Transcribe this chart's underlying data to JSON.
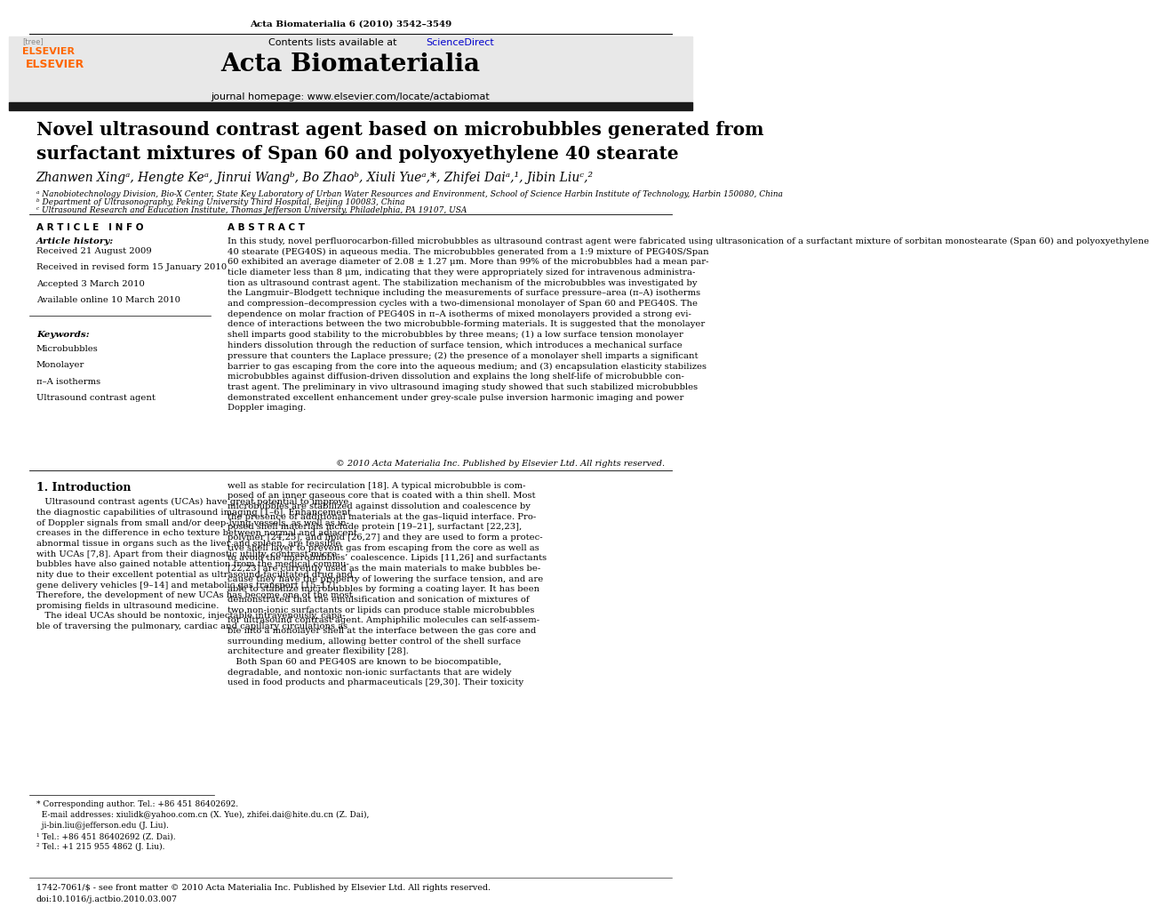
{
  "page_width": 9.92,
  "page_height": 13.23,
  "background_color": "#ffffff",
  "top_margin_text": "Acta Biomaterialia 6 (2010) 3542–3549",
  "journal_name": "Acta Biomaterialia",
  "journal_homepage": "journal homepage: www.elsevier.com/locate/actabiomat",
  "contents_text": "Contents lists available at ScienceDirect",
  "article_title": "Novel ultrasound contrast agent based on microbubbles generated from\nsurfactant mixtures of Span 60 and polyoxyethylene 40 stearate",
  "authors": "Zhanwen Xingᵃ, Hengte Keᵃ, Jinrui Wangᵇ, Bo Zhaoᵇ, Xiuli Yueᵃ,*, Zhifei Daiᵃ,¹, Jibin Liuᶜ,²",
  "affil_a": "ᵃ Nanobiotechnology Division, Bio-X Center, State Key Laboratory of Urban Water Resources and Environment, School of Science Harbin Institute of Technology, Harbin 150080, China",
  "affil_b": "ᵇ Department of Ultrasonography, Peking University Third Hospital, Beijing 100083, China",
  "affil_c": "ᶜ Ultrasound Research and Education Institute, Thomas Jefferson University, Philadelphia, PA 19107, USA",
  "article_info_header": "A R T I C L E   I N F O",
  "abstract_header": "A B S T R A C T",
  "article_history_header": "Article history:",
  "article_history": [
    "Received 21 August 2009",
    "Received in revised form 15 January 2010",
    "Accepted 3 March 2010",
    "Available online 10 March 2010"
  ],
  "keywords_header": "Keywords:",
  "keywords": [
    "Microbubbles",
    "Monolayer",
    "π–A isotherms",
    "Ultrasound contrast agent"
  ],
  "abstract_text": "In this study, novel perfluorocarbon-filled microbubbles as ultrasound contrast agent were fabricated using ultrasonication of a surfactant mixture of sorbitan monostearate (Span 60) and polyoxyethylene\n40 stearate (PEG40S) in aqueous media. The microbubbles generated from a 1:9 mixture of PEG40S/Span\n60 exhibited an average diameter of 2.08 ± 1.27 μm. More than 99% of the microbubbles had a mean par-\nticle diameter less than 8 μm, indicating that they were appropriately sized for intravenous administra-\ntion as ultrasound contrast agent. The stabilization mechanism of the microbubbles was investigated by\nthe Langmuir–Blodgett technique including the measurements of surface pressure–area (π–A) isotherms\nand compression–decompression cycles with a two-dimensional monolayer of Span 60 and PEG40S. The\ndependence on molar fraction of PEG40S in π–A isotherms of mixed monolayers provided a strong evi-\ndence of interactions between the two microbubble-forming materials. It is suggested that the monolayer\nshell imparts good stability to the microbubbles by three means; (1) a low surface tension monolayer\nhinders dissolution through the reduction of surface tension, which introduces a mechanical surface\npressure that counters the Laplace pressure; (2) the presence of a monolayer shell imparts a significant\nbarrier to gas escaping from the core into the aqueous medium; and (3) encapsulation elasticity stabilizes\nmicrobubbles against diffusion-driven dissolution and explains the long shelf-life of microbubble con-\ntrast agent. The preliminary in vivo ultrasound imaging study showed that such stabilized microbubbles\ndemonstrated excellent enhancement under grey-scale pulse inversion harmonic imaging and power\nDoppler imaging.",
  "copyright_text": "© 2010 Acta Materialia Inc. Published by Elsevier Ltd. All rights reserved.",
  "intro_header": "1. Introduction",
  "intro_left_lines": [
    "   Ultrasound contrast agents (UCAs) have great potential to improve",
    "the diagnostic capabilities of ultrasound imaging [1–6]. Enhancement",
    "of Doppler signals from small and/or deep-lying vessels, as well as in-",
    "creases in the difference in echo texture between normal and adjacent",
    "abnormal tissue in organs such as the liver and spleen, are feasible",
    "with UCAs [7,8]. Apart from their diagnostic utility, contrast micro-",
    "bubbles have also gained notable attention from the medical commu-",
    "nity due to their excellent potential as ultrasound-facilitated drug and",
    "gene delivery vehicles [9–14] and metabolic gas transport [15–17].",
    "Therefore, the development of new UCAs has become one of the most",
    "promising fields in ultrasound medicine.",
    "   The ideal UCAs should be nontoxic, injectable intravenously, capa-",
    "ble of traversing the pulmonary, cardiac and capillary circulations as"
  ],
  "intro_right_lines": [
    "well as stable for recirculation [18]. A typical microbubble is com-",
    "posed of an inner gaseous core that is coated with a thin shell. Most",
    "microbubbles are stabilized against dissolution and coalescence by",
    "the presence of additional materials at the gas–liquid interface. Pro-",
    "posed shell materials include protein [19–21], surfactant [22,23],",
    "polymer [24,25], and lipid [26,27] and they are used to form a protec-",
    "tive shell layer to prevent gas from escaping from the core as well as",
    "to avoid the microbubbles’ coalescence. Lipids [11,26] and surfactants",
    "[22,23] are currently used as the main materials to make bubbles be-",
    "cause they have the property of lowering the surface tension, and are",
    "able to stabilize microbubbles by forming a coating layer. It has been",
    "demonstrated that the emulsification and sonication of mixtures of",
    "two non-ionic surfactants or lipids can produce stable microbubbles",
    "for ultrasound contrast agent. Amphiphilic molecules can self-assem-",
    "ble into a monolayer shell at the interface between the gas core and",
    "surrounding medium, allowing better control of the shell surface",
    "architecture and greater flexibility [28].",
    "   Both Span 60 and PEG40S are known to be biocompatible,",
    "degradable, and nontoxic non-ionic surfactants that are widely",
    "used in food products and pharmaceuticals [29,30]. Their toxicity"
  ],
  "footer_text": "1742-7061/$ - see front matter © 2010 Acta Materialia Inc. Published by Elsevier Ltd. All rights reserved.\ndoi:10.1016/j.actbio.2010.03.007",
  "corresponding_note_lines": [
    "* Corresponding author. Tel.: +86 451 86402692.",
    "  E-mail addresses: xiulidk@yahoo.com.cn (X. Yue), zhifei.dai@hite.du.cn (Z. Dai),",
    "  ji-bin.liu@jefferson.edu (J. Liu).",
    "¹ Tel.: +86 451 86402692 (Z. Dai).",
    "² Tel.: +1 215 955 4862 (J. Liu)."
  ],
  "header_bar_color": "#1a1a1a",
  "link_color": "#0000cc",
  "elsevier_orange": "#FF6600"
}
